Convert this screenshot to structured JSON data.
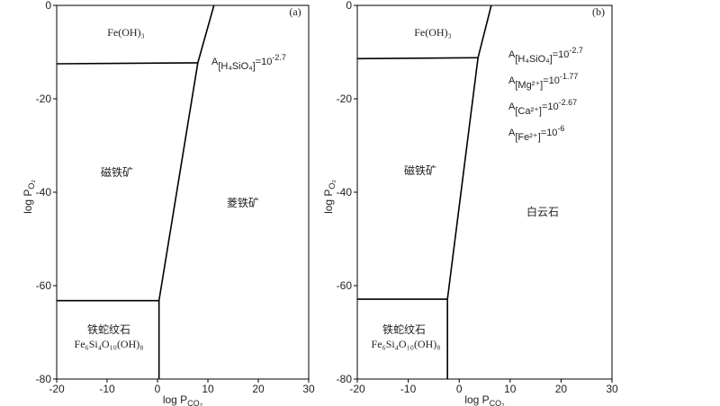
{
  "chart_data": [
    {
      "type": "line",
      "label": "(a)",
      "xlabel": [
        "log P",
        "CO₂"
      ],
      "ylabel": [
        "log P",
        "O₂"
      ],
      "xlim": [
        -20,
        30
      ],
      "ylim": [
        -80,
        0
      ],
      "xticks": [
        -20,
        -10,
        0,
        10,
        20,
        30
      ],
      "yticks": [
        0,
        -20,
        -40,
        -60,
        -80
      ],
      "series": [
        {
          "color": "#000000",
          "x": [
            -20,
            8
          ],
          "values": [
            -12.5,
            -12.3
          ]
        },
        {
          "color": "#000000",
          "x": [
            11.2,
            8,
            0.3,
            0.3
          ],
          "values": [
            0,
            -12.3,
            -63.2,
            -80
          ]
        },
        {
          "color": "#000000",
          "x": [
            -20,
            0.3
          ],
          "values": [
            -63.2,
            -63.2
          ]
        }
      ],
      "regions": [
        "Fe(OH)₃",
        "磁铁矿",
        "菱铁矿",
        "铁蛇纹石",
        "Fe₆Si₄O₁₀(OH)₈"
      ],
      "activities": [
        [
          "A",
          "[H₄SiO₄]",
          "=10",
          "-2.7"
        ]
      ]
    },
    {
      "type": "line",
      "label": "(b)",
      "xlabel": [
        "log P",
        "CO₂"
      ],
      "ylabel": [
        "log P",
        "O₂"
      ],
      "xlim": [
        -20,
        30
      ],
      "ylim": [
        -80,
        0
      ],
      "xticks": [
        -20,
        -10,
        0,
        10,
        20,
        30
      ],
      "yticks": [
        0,
        -20,
        -40,
        -60,
        -80
      ],
      "series": [
        {
          "color": "#000000",
          "x": [
            -20,
            3.7
          ],
          "values": [
            -11.4,
            -11.2
          ]
        },
        {
          "color": "#000000",
          "x": [
            6.3,
            3.7,
            -2.3,
            -2.3
          ],
          "values": [
            0,
            -11.2,
            -62.9,
            -80
          ]
        },
        {
          "color": "#000000",
          "x": [
            -20,
            -2.3
          ],
          "values": [
            -62.9,
            -62.9
          ]
        }
      ],
      "regions": [
        "Fe(OH)₃",
        "磁铁矿",
        "白云石",
        "铁蛇纹石",
        "Fe₆Si₄O₁₀(OH)₈"
      ],
      "activities": [
        [
          "A",
          "[H₄SiO₄]",
          "=10",
          "-2.7"
        ],
        [
          "A",
          "[Mg²⁺]",
          "=10",
          "-1.77"
        ],
        [
          "A",
          "[Ca²⁺]",
          "=10",
          "-2.67"
        ],
        [
          "A",
          "[Fe²⁺]",
          "=10",
          "-6"
        ]
      ]
    }
  ]
}
